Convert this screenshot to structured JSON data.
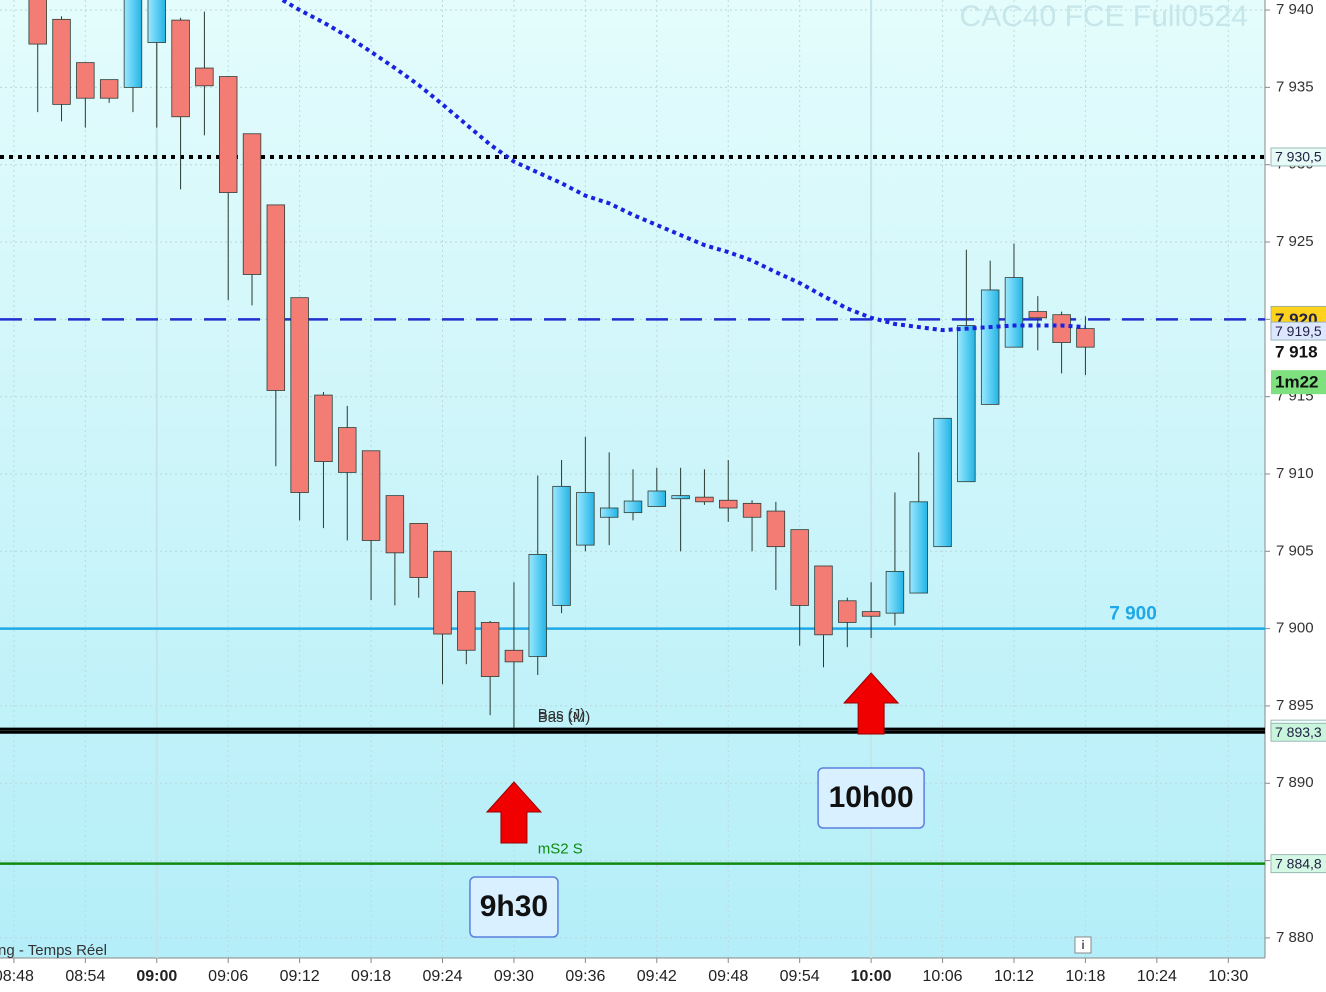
{
  "chart_data": {
    "type": "candlestick",
    "title": "CAC40 FCE Full0524",
    "source": "ng - Temps Réel",
    "x": [
      "08:50",
      "08:52",
      "08:54",
      "08:56",
      "08:58",
      "09:00",
      "09:02",
      "09:04",
      "09:06",
      "09:08",
      "09:10",
      "09:12",
      "09:14",
      "09:16",
      "09:18",
      "09:20",
      "09:22",
      "09:24",
      "09:26",
      "09:28",
      "09:30",
      "09:32",
      "09:34",
      "09:36",
      "09:38",
      "09:40",
      "09:42",
      "09:44",
      "09:46",
      "09:48",
      "09:50",
      "09:52",
      "09:54",
      "09:56",
      "09:58",
      "10:00",
      "10:02",
      "10:04",
      "10:06",
      "10:08",
      "10:10",
      "10:12",
      "10:14",
      "10:16",
      "10:18"
    ],
    "open": [
      7941,
      7939.4,
      7936.6,
      7935.5,
      7935.0,
      7937.9,
      7939.35,
      7936.25,
      7935.7,
      7932.0,
      7927.4,
      7921.4,
      7915.1,
      7913.0,
      7911.5,
      7908.6,
      7906.8,
      7905.0,
      7902.4,
      7900.4,
      7898.6,
      7898.2,
      7901.5,
      7905.4,
      7907.2,
      7907.5,
      7907.9,
      7908.4,
      7908.5,
      7908.3,
      7908.1,
      7907.6,
      7906.4,
      7904.05,
      7901.8,
      7901.1,
      7901.0,
      7902.3,
      7905.3,
      7909.5,
      7914.5,
      7918.2,
      7920.5,
      7920.3,
      7919.4
    ],
    "high": [
      7942,
      7939.6,
      7936.6,
      7935.5,
      7942,
      7942,
      7939.5,
      7939.9,
      7935.7,
      7932.0,
      7927.4,
      7921.4,
      7915.3,
      7914.4,
      7911.5,
      7908.6,
      7906.8,
      7905.0,
      7902.4,
      7900.5,
      7903.0,
      7909.9,
      7910.9,
      7912.4,
      7911.4,
      7910.3,
      7910.4,
      7910.4,
      7910.3,
      7910.9,
      7908.3,
      7908.2,
      7906.4,
      7904.05,
      7902.0,
      7903.0,
      7908.8,
      7911.4,
      7913.6,
      7924.5,
      7923.8,
      7924.9,
      7921.5,
      7920.5,
      7920.2
    ],
    "low": [
      7933.4,
      7932.8,
      7932.4,
      7934.0,
      7933.4,
      7932.4,
      7928.4,
      7931.9,
      7921.25,
      7920.9,
      7910.5,
      7907.0,
      7906.5,
      7905.7,
      7901.85,
      7901.5,
      7902.0,
      7896.4,
      7897.7,
      7894.4,
      7893.6,
      7897.0,
      7901.0,
      7905.0,
      7905.4,
      7907.0,
      7907.9,
      7905.0,
      7908.0,
      7906.9,
      7905.0,
      7902.5,
      7898.9,
      7897.5,
      7898.8,
      7899.4,
      7900.2,
      7902.3,
      7905.3,
      7909.5,
      7914.5,
      7918.2,
      7918.0,
      7916.5,
      7916.4
    ],
    "close": [
      7937.8,
      7933.9,
      7934.3,
      7934.3,
      7941,
      7941,
      7933.1,
      7935.1,
      7928.2,
      7922.9,
      7915.4,
      7908.8,
      7910.8,
      7910.1,
      7905.7,
      7904.9,
      7903.3,
      7899.65,
      7898.6,
      7896.9,
      7897.85,
      7904.8,
      7909.2,
      7908.8,
      7907.8,
      7908.25,
      7908.9,
      7908.6,
      7908.2,
      7907.8,
      7907.2,
      7905.3,
      7901.5,
      7899.6,
      7900.4,
      7900.8,
      7903.7,
      7908.2,
      7913.6,
      7919.6,
      7921.9,
      7922.7,
      7920.1,
      7918.5,
      7918.2
    ],
    "up_color": "#3cc4ee",
    "down_color": "#f37d74",
    "ma": {
      "color": "#1a22e0",
      "values": [
        null,
        null,
        null,
        null,
        null,
        null,
        null,
        null,
        null,
        null,
        7940.9,
        7940.0,
        7939.2,
        7938.3,
        7937.3,
        7936.25,
        7935.15,
        7933.9,
        7932.6,
        7931.3,
        7930.2,
        7929.5,
        7928.8,
        7928.0,
        7927.5,
        7926.75,
        7926.1,
        7925.45,
        7924.8,
        7924.35,
        7923.8,
        7923.05,
        7922.35,
        7921.5,
        7920.7,
        7920.1,
        7919.7,
        7919.5,
        7919.3,
        7919.4,
        7919.5,
        7919.6,
        7919.6,
        7919.6,
        7919.5
      ],
      "tag": "7 919,5"
    },
    "xlim": [
      "08:47",
      "10:33"
    ],
    "xticks": [
      "08:48",
      "08:54",
      "09:00",
      "09:06",
      "09:12",
      "09:18",
      "09:24",
      "09:30",
      "09:36",
      "09:42",
      "09:48",
      "09:54",
      "10:00",
      "10:06",
      "10:12",
      "10:18",
      "10:24",
      "10:30"
    ],
    "major_xticks": [
      "09:00",
      "10:00"
    ],
    "ylim": [
      7878.7,
      7940.65
    ],
    "yticks": [
      {
        "value": 7880,
        "label": "7 880"
      },
      {
        "value": 7885,
        "label": "7 885"
      },
      {
        "value": 7890,
        "label": "7 890"
      },
      {
        "value": 7895,
        "label": "7 895"
      },
      {
        "value": 7900,
        "label": "7 900"
      },
      {
        "value": 7905,
        "label": "7 905"
      },
      {
        "value": 7910,
        "label": "7 910"
      },
      {
        "value": 7915,
        "label": "7 915"
      },
      {
        "value": 7920,
        "label": "7 920"
      },
      {
        "value": 7925,
        "label": "7 925"
      },
      {
        "value": 7930,
        "label": "7 930"
      },
      {
        "value": 7935,
        "label": "7 935"
      },
      {
        "value": 7940,
        "label": "7 940"
      }
    ],
    "grid": true,
    "levels": [
      {
        "value": 7930.5,
        "color": "#000000",
        "style": "dotted",
        "tag": "7 930,5",
        "tag_bg": "#e6fbf6"
      },
      {
        "value": 7920,
        "color": "#2030d0",
        "style": "dashed",
        "tag": "7 920",
        "tag_bg": "#ffd21e"
      },
      {
        "value": 7900,
        "color": "#1ea8e8",
        "style": "solid",
        "text": "7 900",
        "text_x": "10:22"
      },
      {
        "value": 7893.5,
        "color": "#000000",
        "style": "thick",
        "tag": "7 893,5",
        "tag_bg": "#f4ffff",
        "text": "Bas (J)",
        "text_x": "09:32"
      },
      {
        "value": 7893.3,
        "color": "#000000",
        "style": "thick",
        "tag": "7 893,3",
        "tag_bg": "#c8f5dc",
        "text": "Bas (M)",
        "text_x": "09:32"
      },
      {
        "value": 7884.8,
        "color": "#108a10",
        "style": "solid",
        "tag": "7 884,8",
        "tag_bg": "#d4f8e4",
        "text": "mS2 S",
        "text_x": "09:32"
      }
    ],
    "last_price": {
      "value": 7918.2,
      "label": "7 918"
    },
    "countdown": "1m22",
    "callouts": [
      {
        "text": "9h30",
        "x": "09:30"
      },
      {
        "text": "10h00",
        "x": "10:00"
      }
    ]
  }
}
